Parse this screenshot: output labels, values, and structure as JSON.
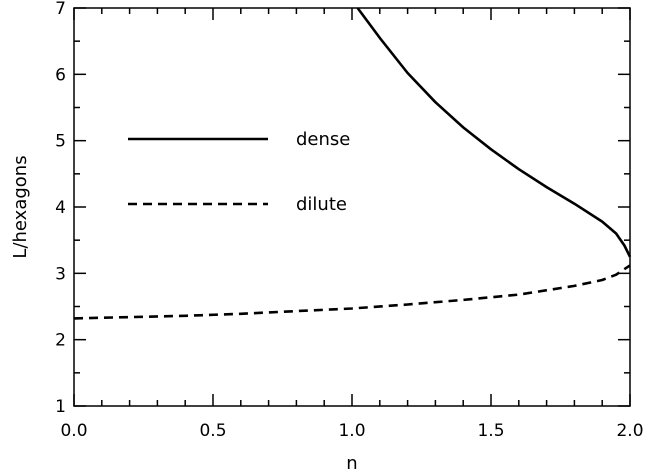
{
  "chart_data": {
    "type": "line",
    "title": "",
    "xlabel": "n",
    "ylabel": "L/hexagons",
    "xlim": [
      0.0,
      2.0
    ],
    "ylim": [
      1,
      7
    ],
    "x_ticks": [
      0.0,
      0.5,
      1.0,
      1.5,
      2.0
    ],
    "x_tick_labels": [
      "0.0",
      "0.5",
      "1.0",
      "1.5",
      "2.0"
    ],
    "y_ticks": [
      1,
      2,
      3,
      4,
      5,
      6,
      7
    ],
    "y_tick_labels": [
      "1",
      "2",
      "3",
      "4",
      "5",
      "6",
      "7"
    ],
    "grid": false,
    "legend_position": "center-left",
    "series": [
      {
        "name": "dense",
        "style": "solid",
        "color": "#000000",
        "x": [
          1.02,
          1.1,
          1.2,
          1.3,
          1.4,
          1.5,
          1.6,
          1.7,
          1.8,
          1.9,
          1.95,
          1.98,
          2.0
        ],
        "y": [
          7.0,
          6.55,
          6.02,
          5.58,
          5.2,
          4.87,
          4.57,
          4.3,
          4.05,
          3.78,
          3.6,
          3.42,
          3.25
        ]
      },
      {
        "name": "dilute",
        "style": "dashed",
        "color": "#000000",
        "x": [
          0.0,
          0.2,
          0.4,
          0.6,
          0.8,
          1.0,
          1.2,
          1.4,
          1.6,
          1.8,
          1.9,
          1.95,
          2.0
        ],
        "y": [
          2.32,
          2.34,
          2.36,
          2.39,
          2.43,
          2.47,
          2.53,
          2.6,
          2.68,
          2.81,
          2.9,
          2.98,
          3.12
        ]
      }
    ]
  }
}
